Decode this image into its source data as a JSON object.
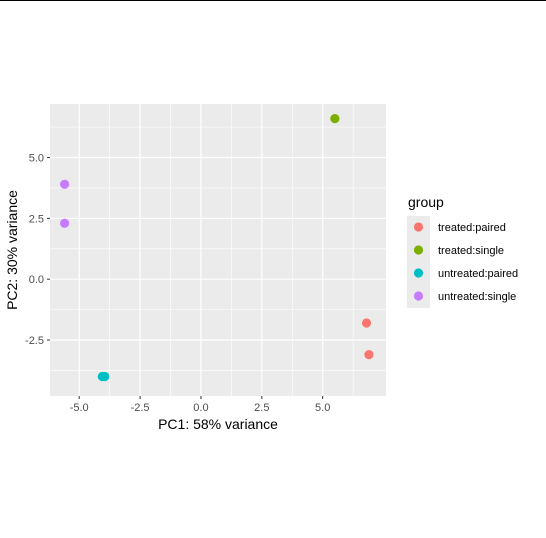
{
  "chart_data": {
    "type": "scatter",
    "xlabel": "PC1: 58% variance",
    "ylabel": "PC2: 30% variance",
    "xlim": [
      -6.2,
      7.6
    ],
    "ylim": [
      -4.8,
      7.2
    ],
    "x_ticks": [
      -5.0,
      -2.5,
      0.0,
      2.5,
      5.0
    ],
    "x_tick_labels": [
      "-5.0",
      "-2.5",
      "0.0",
      "2.5",
      "5.0"
    ],
    "y_ticks": [
      -2.5,
      0.0,
      2.5,
      5.0
    ],
    "y_tick_labels": [
      "-2.5",
      "0.0",
      "2.5",
      "5.0"
    ],
    "grid": true,
    "legend": {
      "title": "group",
      "position": "right",
      "entries": [
        "treated:paired",
        "treated:single",
        "untreated:paired",
        "untreated:single"
      ]
    },
    "series": [
      {
        "name": "treated:paired",
        "color": "#F8766D",
        "points": [
          {
            "x": 6.8,
            "y": -1.8
          },
          {
            "x": 6.9,
            "y": -3.1
          }
        ]
      },
      {
        "name": "treated:single",
        "color": "#7CAE00",
        "points": [
          {
            "x": 5.5,
            "y": 6.6
          }
        ]
      },
      {
        "name": "untreated:paired",
        "color": "#00BFC4",
        "points": [
          {
            "x": -4.05,
            "y": -4.0
          },
          {
            "x": -3.95,
            "y": -4.0
          }
        ]
      },
      {
        "name": "untreated:single",
        "color": "#C77CFF",
        "points": [
          {
            "x": -5.6,
            "y": 3.9
          },
          {
            "x": -5.6,
            "y": 2.3
          }
        ]
      }
    ],
    "panel_background": "#EBEBEB",
    "grid_color": "#FFFFFF"
  }
}
